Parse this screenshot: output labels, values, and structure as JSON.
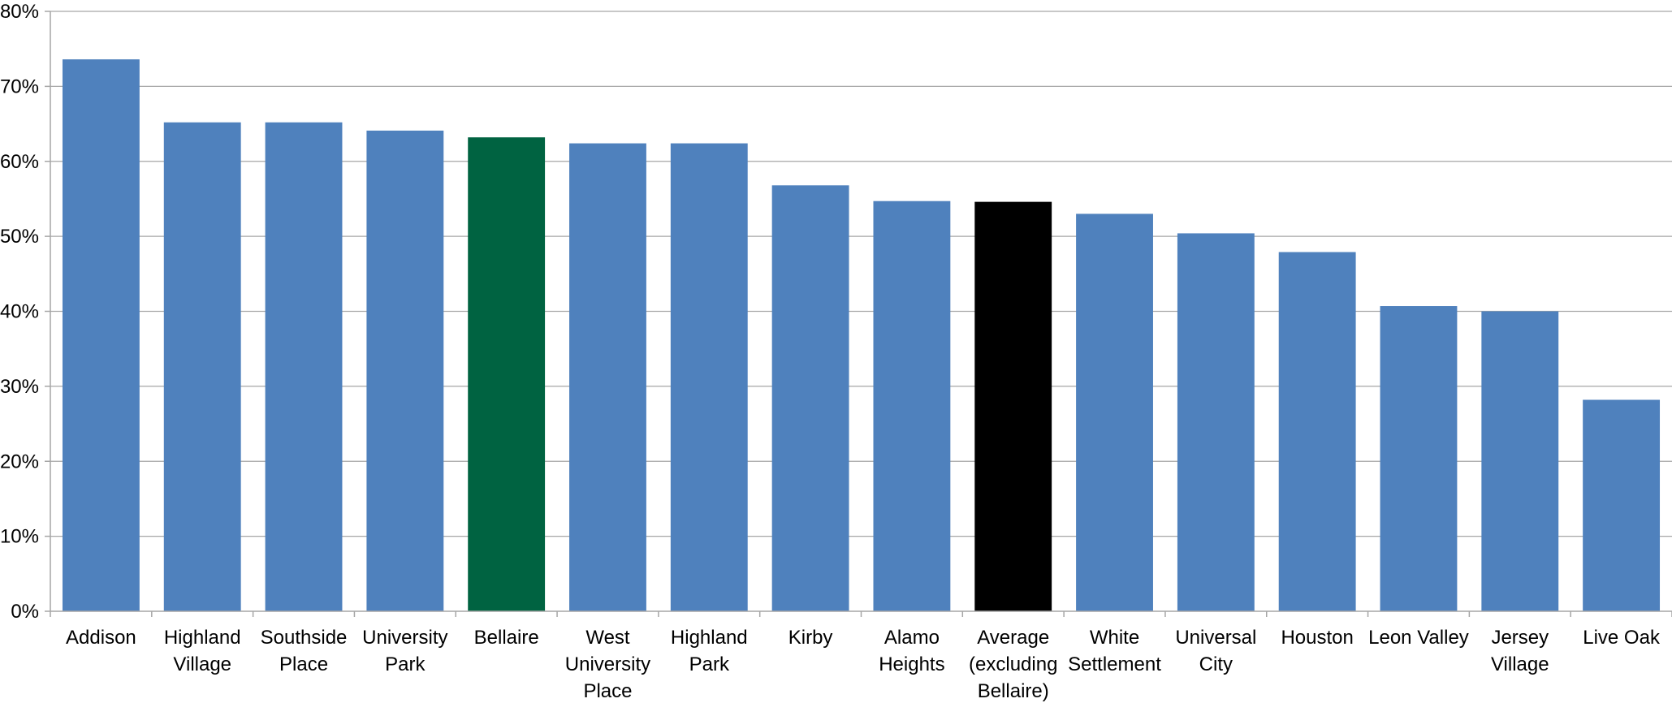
{
  "chart_data": {
    "type": "bar",
    "categories": [
      "Addison",
      "Highland Village",
      "Southside Place",
      "University Park",
      "Bellaire",
      "West University Place",
      "Highland Park",
      "Kirby",
      "Alamo Heights",
      "Average (excluding Bellaire)",
      "White Settlement",
      "Universal City",
      "Houston",
      "Leon Valley",
      "Jersey Village",
      "Live Oak"
    ],
    "category_label_lines": [
      [
        "Addison"
      ],
      [
        "Highland",
        "Village"
      ],
      [
        "Southside",
        "Place"
      ],
      [
        "University",
        "Park"
      ],
      [
        "Bellaire"
      ],
      [
        "West",
        "University",
        "Place"
      ],
      [
        "Highland",
        "Park"
      ],
      [
        "Kirby"
      ],
      [
        "Alamo",
        "Heights"
      ],
      [
        "Average",
        "(excluding",
        "Bellaire)"
      ],
      [
        "White",
        "Settlement"
      ],
      [
        "Universal",
        "City"
      ],
      [
        "Houston"
      ],
      [
        "Leon Valley"
      ],
      [
        "Jersey",
        "Village"
      ],
      [
        "Live Oak"
      ]
    ],
    "values": [
      73.6,
      65.2,
      65.2,
      64.1,
      63.2,
      62.4,
      62.4,
      56.8,
      54.7,
      54.6,
      53.0,
      50.4,
      47.9,
      40.7,
      40.0,
      28.2
    ],
    "bar_colors": [
      "#4f81bd",
      "#4f81bd",
      "#4f81bd",
      "#4f81bd",
      "#006341",
      "#4f81bd",
      "#4f81bd",
      "#4f81bd",
      "#4f81bd",
      "#000000",
      "#4f81bd",
      "#4f81bd",
      "#4f81bd",
      "#4f81bd",
      "#4f81bd",
      "#4f81bd"
    ],
    "ylim": [
      0,
      80
    ],
    "y_ticks": [
      0,
      10,
      20,
      30,
      40,
      50,
      60,
      70,
      80
    ],
    "y_tick_labels": [
      "0%",
      "10%",
      "20%",
      "30%",
      "40%",
      "50%",
      "60%",
      "70%",
      "80%"
    ],
    "grid": true,
    "legend": "none",
    "title": "",
    "xlabel": "",
    "ylabel": ""
  }
}
